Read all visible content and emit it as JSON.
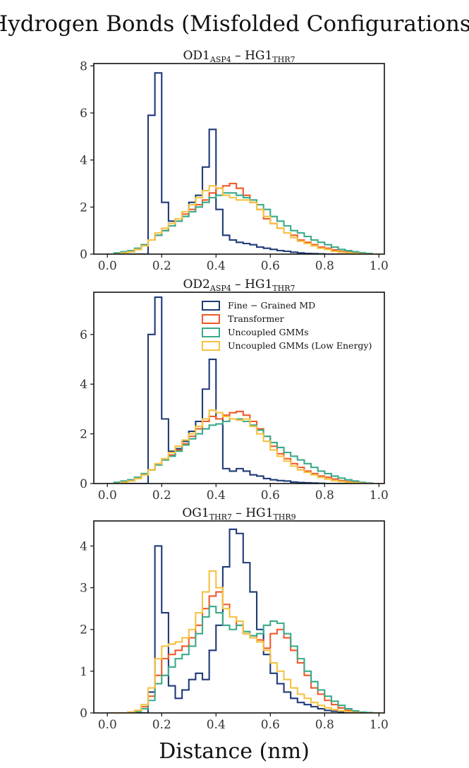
{
  "figure": {
    "title": "Hydrogen Bonds (Misfolded Configurations)",
    "xlabel": "Distance (nm)"
  },
  "colors": {
    "Fine - Grained MD": "#1f3a78",
    "Transformer": "#f05a28",
    "Uncoupled GMMs": "#3aaa8a",
    "Uncoupled GMMs (Low Energy)": "#f5c242"
  },
  "chart_data": [
    {
      "type": "histogram-step",
      "title_main": "OD1",
      "title_sub1": "ASP4",
      "title_mid": " – HG1",
      "title_sub2": "THR7",
      "xlim": [
        -0.05,
        1.02
      ],
      "ylim": [
        0,
        8.1
      ],
      "xticks": [
        0.0,
        0.2,
        0.4,
        0.6,
        0.8,
        1.0
      ],
      "xtick_labels": [
        "0.0",
        "0.2",
        "0.4",
        "0.6",
        "0.8",
        "1.0"
      ],
      "yticks": [
        0,
        2,
        4,
        6,
        8
      ],
      "ytick_labels": [
        "0",
        "2",
        "4",
        "6",
        "8"
      ],
      "bin_edges": [
        0.0,
        0.025,
        0.05,
        0.075,
        0.1,
        0.125,
        0.15,
        0.175,
        0.2,
        0.225,
        0.25,
        0.275,
        0.3,
        0.325,
        0.35,
        0.375,
        0.4,
        0.425,
        0.45,
        0.475,
        0.5,
        0.525,
        0.55,
        0.575,
        0.6,
        0.625,
        0.65,
        0.675,
        0.7,
        0.725,
        0.75,
        0.775,
        0.8,
        0.825,
        0.85,
        0.875,
        0.9,
        0.925,
        0.95,
        0.975,
        1.0
      ],
      "series": [
        {
          "name": "Fine - Grained MD",
          "values": [
            0,
            0,
            0,
            0,
            0,
            0,
            5.9,
            7.7,
            2.2,
            1.4,
            1.5,
            1.8,
            2.2,
            2.5,
            3.7,
            5.3,
            1.9,
            0.8,
            0.6,
            0.5,
            0.45,
            0.4,
            0.3,
            0.25,
            0.2,
            0.15,
            0.12,
            0.08,
            0.05,
            0.03,
            0.02,
            0.01,
            0,
            0,
            0,
            0,
            0,
            0,
            0,
            0
          ]
        },
        {
          "name": "Transformer",
          "values": [
            0,
            0,
            0.05,
            0.1,
            0.2,
            0.4,
            0.6,
            0.8,
            1.0,
            1.2,
            1.4,
            1.7,
            1.9,
            2.1,
            2.3,
            2.6,
            2.8,
            2.9,
            3.0,
            2.8,
            2.5,
            2.2,
            1.9,
            1.5,
            1.3,
            1.1,
            0.9,
            0.8,
            0.6,
            0.5,
            0.4,
            0.3,
            0.25,
            0.18,
            0.12,
            0.08,
            0.05,
            0.03,
            0.01,
            0
          ]
        },
        {
          "name": "Uncoupled GMMs",
          "values": [
            0,
            0.05,
            0.1,
            0.15,
            0.25,
            0.4,
            0.6,
            0.8,
            1.0,
            1.2,
            1.4,
            1.6,
            1.8,
            2.0,
            2.2,
            2.4,
            2.5,
            2.6,
            2.6,
            2.5,
            2.4,
            2.3,
            2.1,
            1.9,
            1.6,
            1.4,
            1.2,
            1.0,
            0.9,
            0.75,
            0.6,
            0.5,
            0.4,
            0.3,
            0.2,
            0.15,
            0.1,
            0.06,
            0.03,
            0
          ]
        },
        {
          "name": "Uncoupled GMMs (Low Energy)",
          "values": [
            0,
            0,
            0.05,
            0.1,
            0.2,
            0.35,
            0.6,
            0.9,
            1.1,
            1.3,
            1.5,
            1.8,
            2.1,
            2.4,
            2.7,
            2.9,
            2.8,
            2.5,
            2.4,
            2.3,
            2.3,
            2.2,
            1.9,
            1.6,
            1.3,
            1.1,
            0.9,
            0.7,
            0.55,
            0.45,
            0.35,
            0.25,
            0.2,
            0.12,
            0.08,
            0.05,
            0.03,
            0.01,
            0,
            0
          ]
        }
      ]
    },
    {
      "type": "histogram-step",
      "title_main": "OD2",
      "title_sub1": "ASP4",
      "title_mid": " – HG1",
      "title_sub2": "THR7",
      "xlim": [
        -0.05,
        1.02
      ],
      "ylim": [
        0,
        7.7
      ],
      "xticks": [
        0.0,
        0.2,
        0.4,
        0.6,
        0.8,
        1.0
      ],
      "xtick_labels": [
        "0.0",
        "0.2",
        "0.4",
        "0.6",
        "0.8",
        "1.0"
      ],
      "yticks": [
        0,
        2,
        4,
        6
      ],
      "ytick_labels": [
        "0",
        "2",
        "4",
        "6"
      ],
      "legend": {
        "position": "top-right",
        "entries": [
          "Fine − Grained MD",
          "Transformer",
          "Uncoupled GMMs",
          "Uncoupled GMMs (Low Energy)"
        ]
      },
      "bin_edges": [
        0.0,
        0.025,
        0.05,
        0.075,
        0.1,
        0.125,
        0.15,
        0.175,
        0.2,
        0.225,
        0.25,
        0.275,
        0.3,
        0.325,
        0.35,
        0.375,
        0.4,
        0.425,
        0.45,
        0.475,
        0.5,
        0.525,
        0.55,
        0.575,
        0.6,
        0.625,
        0.65,
        0.675,
        0.7,
        0.725,
        0.75,
        0.775,
        0.8,
        0.825,
        0.85,
        0.875,
        0.9,
        0.925,
        0.95,
        0.975,
        1.0
      ],
      "series": [
        {
          "name": "Fine - Grained MD",
          "values": [
            0,
            0,
            0,
            0,
            0,
            0,
            6.0,
            7.5,
            2.6,
            1.3,
            1.4,
            1.7,
            2.1,
            2.5,
            3.8,
            5.0,
            2.6,
            0.6,
            0.5,
            0.6,
            0.5,
            0.35,
            0.3,
            0.2,
            0.15,
            0.12,
            0.1,
            0.06,
            0.04,
            0.03,
            0.02,
            0.01,
            0,
            0,
            0,
            0,
            0,
            0,
            0,
            0
          ]
        },
        {
          "name": "Transformer",
          "values": [
            0,
            0,
            0.05,
            0.1,
            0.2,
            0.35,
            0.55,
            0.75,
            0.95,
            1.15,
            1.35,
            1.6,
            1.9,
            2.2,
            2.5,
            2.7,
            2.6,
            2.75,
            2.85,
            2.9,
            2.75,
            2.5,
            2.2,
            1.9,
            1.5,
            1.2,
            1.0,
            0.8,
            0.65,
            0.5,
            0.4,
            0.3,
            0.25,
            0.18,
            0.12,
            0.08,
            0.05,
            0.03,
            0.01,
            0
          ]
        },
        {
          "name": "Uncoupled GMMs",
          "values": [
            0,
            0.05,
            0.1,
            0.15,
            0.25,
            0.4,
            0.55,
            0.75,
            0.95,
            1.1,
            1.3,
            1.55,
            1.8,
            2.0,
            2.2,
            2.35,
            2.4,
            2.5,
            2.6,
            2.6,
            2.5,
            2.35,
            2.15,
            1.9,
            1.65,
            1.45,
            1.25,
            1.1,
            0.95,
            0.8,
            0.65,
            0.5,
            0.4,
            0.3,
            0.22,
            0.15,
            0.1,
            0.05,
            0.02,
            0
          ]
        },
        {
          "name": "Uncoupled GMMs (Low Energy)",
          "values": [
            0,
            0,
            0.05,
            0.1,
            0.2,
            0.35,
            0.55,
            0.8,
            1.0,
            1.25,
            1.5,
            1.75,
            2.0,
            2.3,
            2.6,
            2.95,
            2.85,
            2.7,
            2.6,
            2.55,
            2.6,
            2.3,
            2.0,
            1.7,
            1.35,
            1.1,
            0.9,
            0.7,
            0.55,
            0.45,
            0.35,
            0.25,
            0.18,
            0.12,
            0.08,
            0.05,
            0.03,
            0.01,
            0,
            0
          ]
        }
      ]
    },
    {
      "type": "histogram-step",
      "title_main": "OG1",
      "title_sub1": "THR7",
      "title_mid": " – HG1",
      "title_sub2": "THR9",
      "xlim": [
        -0.05,
        1.02
      ],
      "ylim": [
        0,
        4.6
      ],
      "xticks": [
        0.0,
        0.2,
        0.4,
        0.6,
        0.8,
        1.0
      ],
      "xtick_labels": [
        "0.0",
        "0.2",
        "0.4",
        "0.6",
        "0.8",
        "1.0"
      ],
      "yticks": [
        0,
        1,
        2,
        3,
        4
      ],
      "ytick_labels": [
        "0",
        "1",
        "2",
        "3",
        "4"
      ],
      "bin_edges": [
        0.0,
        0.025,
        0.05,
        0.075,
        0.1,
        0.125,
        0.15,
        0.175,
        0.2,
        0.225,
        0.25,
        0.275,
        0.3,
        0.325,
        0.35,
        0.375,
        0.4,
        0.425,
        0.45,
        0.475,
        0.5,
        0.525,
        0.55,
        0.575,
        0.6,
        0.625,
        0.65,
        0.675,
        0.7,
        0.725,
        0.75,
        0.775,
        0.8,
        0.825,
        0.85,
        0.875,
        0.9,
        0.925,
        0.95,
        0.975,
        1.0
      ],
      "series": [
        {
          "name": "Fine - Grained MD",
          "values": [
            0,
            0,
            0,
            0,
            0,
            0,
            0.5,
            4.0,
            2.4,
            0.65,
            0.35,
            0.55,
            0.8,
            0.95,
            0.8,
            1.5,
            2.1,
            3.5,
            4.4,
            4.3,
            3.6,
            2.9,
            2.0,
            1.4,
            0.95,
            0.7,
            0.5,
            0.35,
            0.25,
            0.2,
            0.15,
            0.1,
            0.06,
            0.04,
            0.02,
            0.01,
            0,
            0,
            0,
            0
          ]
        },
        {
          "name": "Transformer",
          "values": [
            0,
            0,
            0,
            0.02,
            0.05,
            0.15,
            0.4,
            0.9,
            1.3,
            1.4,
            1.5,
            1.6,
            1.8,
            2.1,
            2.5,
            2.8,
            2.9,
            2.6,
            2.3,
            2.1,
            1.9,
            1.85,
            1.75,
            1.55,
            1.9,
            2.0,
            1.8,
            1.5,
            1.2,
            0.9,
            0.6,
            0.45,
            0.3,
            0.2,
            0.12,
            0.06,
            0.03,
            0.01,
            0,
            0
          ]
        },
        {
          "name": "Uncoupled GMMs",
          "values": [
            0,
            0,
            0,
            0.01,
            0.03,
            0.1,
            0.3,
            0.7,
            0.9,
            1.1,
            1.3,
            1.4,
            1.6,
            1.9,
            2.3,
            2.55,
            2.4,
            2.1,
            2.0,
            2.1,
            1.95,
            1.85,
            1.9,
            2.1,
            2.2,
            2.15,
            1.9,
            1.6,
            1.3,
            1.0,
            0.75,
            0.55,
            0.4,
            0.28,
            0.18,
            0.1,
            0.05,
            0.02,
            0.01,
            0
          ]
        },
        {
          "name": "Uncoupled GMMs (Low Energy)",
          "values": [
            0,
            0,
            0,
            0.02,
            0.06,
            0.2,
            0.6,
            1.3,
            1.6,
            1.65,
            1.7,
            1.8,
            2.0,
            2.4,
            2.9,
            3.4,
            3.0,
            2.5,
            2.3,
            2.2,
            1.9,
            1.8,
            1.7,
            1.5,
            1.2,
            1.0,
            0.8,
            0.6,
            0.45,
            0.35,
            0.25,
            0.18,
            0.12,
            0.08,
            0.05,
            0.03,
            0.01,
            0,
            0,
            0
          ]
        }
      ]
    }
  ]
}
